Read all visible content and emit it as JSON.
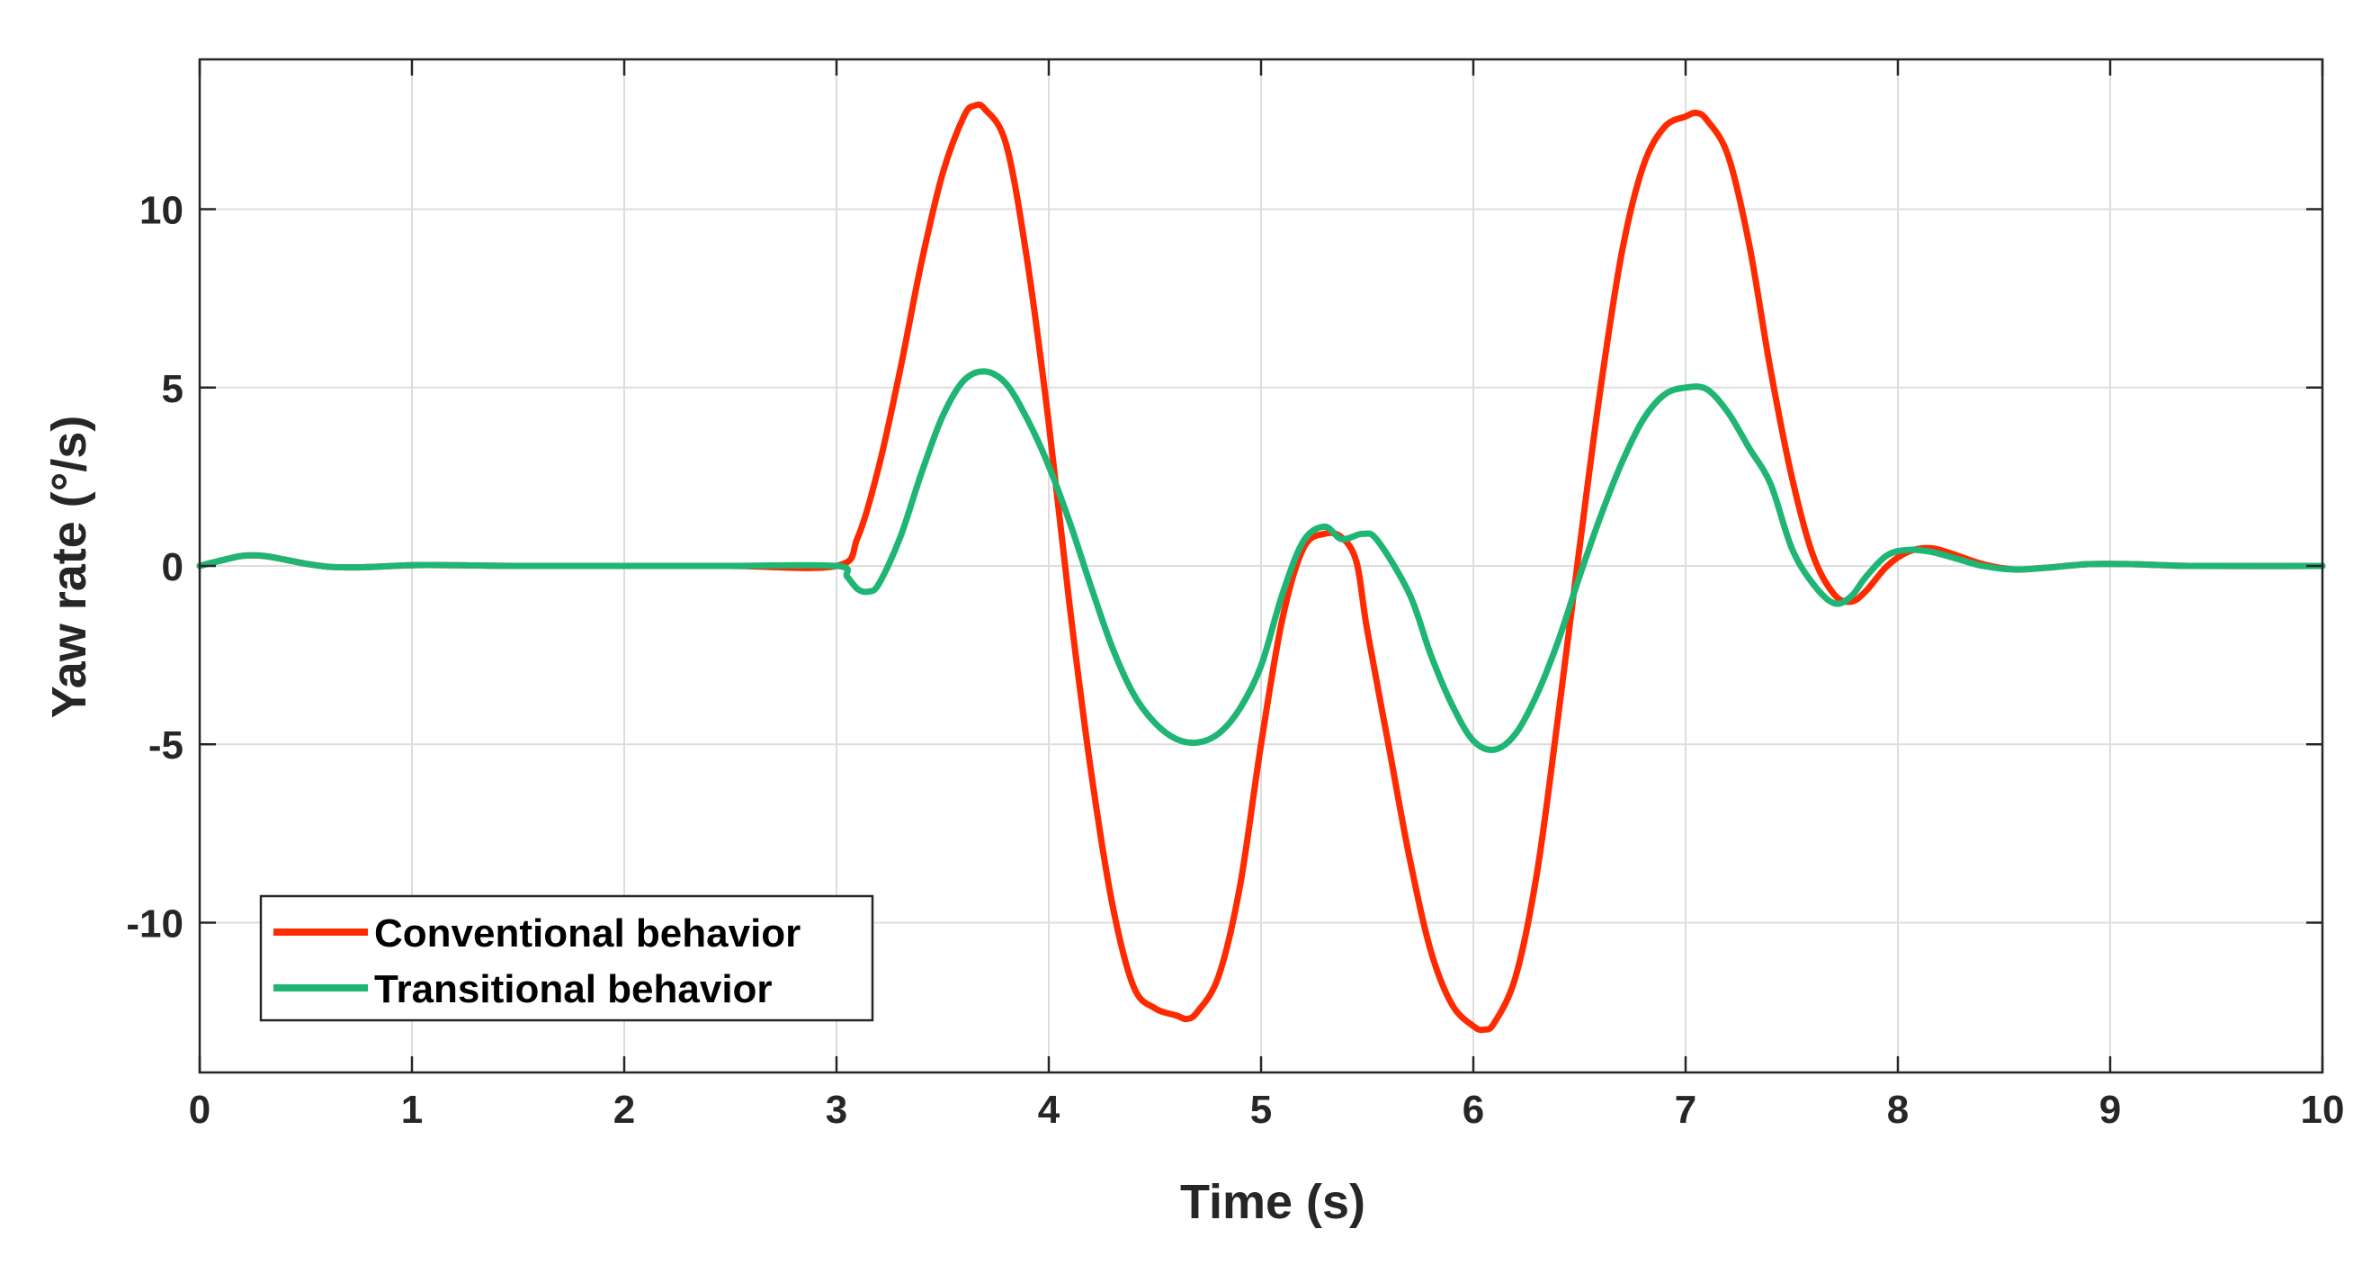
{
  "chart_data": {
    "type": "line",
    "title": "",
    "xlabel": "Time (s)",
    "ylabel": "Yaw rate (°/s)",
    "xlim": [
      0,
      10
    ],
    "ylim": [
      -14.2,
      14.2
    ],
    "xticks": [
      0,
      1,
      2,
      3,
      4,
      5,
      6,
      7,
      8,
      9,
      10
    ],
    "xtick_labels": [
      "0",
      "1",
      "2",
      "3",
      "4",
      "5",
      "6",
      "7",
      "8",
      "9",
      "10"
    ],
    "yticks": [
      10,
      5,
      0,
      -5,
      -10
    ],
    "ytick_labels": [
      "10",
      "5",
      "0",
      "-5",
      "-10"
    ],
    "grid": true,
    "legend_position": "bottom-left",
    "series": [
      {
        "name": "Conventional behavior",
        "color": "#ff2a00",
        "points": [
          [
            0,
            0
          ],
          [
            0.1,
            0.15
          ],
          [
            0.2,
            0.28
          ],
          [
            0.3,
            0.28
          ],
          [
            0.4,
            0.18
          ],
          [
            0.5,
            0.06
          ],
          [
            0.6,
            -0.02
          ],
          [
            0.7,
            -0.04
          ],
          [
            0.8,
            -0.03
          ],
          [
            1.0,
            0.02
          ],
          [
            1.2,
            0.02
          ],
          [
            1.5,
            0
          ],
          [
            2.0,
            0
          ],
          [
            2.5,
            0
          ],
          [
            3.0,
            0
          ],
          [
            3.1,
            0.8
          ],
          [
            3.2,
            2.8
          ],
          [
            3.3,
            5.5
          ],
          [
            3.4,
            8.5
          ],
          [
            3.5,
            11.0
          ],
          [
            3.6,
            12.6
          ],
          [
            3.65,
            12.9
          ],
          [
            3.7,
            12.8
          ],
          [
            3.8,
            11.8
          ],
          [
            3.9,
            8.5
          ],
          [
            4.0,
            4.0
          ],
          [
            4.1,
            -1.2
          ],
          [
            4.2,
            -5.8
          ],
          [
            4.3,
            -9.5
          ],
          [
            4.4,
            -11.8
          ],
          [
            4.5,
            -12.4
          ],
          [
            4.6,
            -12.6
          ],
          [
            4.65,
            -12.7
          ],
          [
            4.7,
            -12.5
          ],
          [
            4.8,
            -11.5
          ],
          [
            4.9,
            -9.0
          ],
          [
            5.0,
            -5.0
          ],
          [
            5.1,
            -1.5
          ],
          [
            5.2,
            0.5
          ],
          [
            5.3,
            0.9
          ],
          [
            5.38,
            0.8
          ],
          [
            5.45,
            0.1
          ],
          [
            5.5,
            -1.8
          ],
          [
            5.6,
            -5.0
          ],
          [
            5.7,
            -8.2
          ],
          [
            5.8,
            -10.8
          ],
          [
            5.9,
            -12.3
          ],
          [
            6.0,
            -12.9
          ],
          [
            6.05,
            -13.0
          ],
          [
            6.1,
            -12.8
          ],
          [
            6.2,
            -11.5
          ],
          [
            6.3,
            -8.6
          ],
          [
            6.4,
            -4.2
          ],
          [
            6.5,
            0.5
          ],
          [
            6.6,
            5.0
          ],
          [
            6.7,
            8.8
          ],
          [
            6.8,
            11.2
          ],
          [
            6.9,
            12.3
          ],
          [
            7.0,
            12.6
          ],
          [
            7.05,
            12.7
          ],
          [
            7.1,
            12.5
          ],
          [
            7.2,
            11.5
          ],
          [
            7.3,
            9.0
          ],
          [
            7.4,
            5.5
          ],
          [
            7.5,
            2.5
          ],
          [
            7.6,
            0.3
          ],
          [
            7.7,
            -0.8
          ],
          [
            7.78,
            -1.0
          ],
          [
            7.85,
            -0.7
          ],
          [
            7.95,
            0.0
          ],
          [
            8.05,
            0.4
          ],
          [
            8.15,
            0.5
          ],
          [
            8.25,
            0.35
          ],
          [
            8.4,
            0.05
          ],
          [
            8.55,
            -0.1
          ],
          [
            8.7,
            -0.05
          ],
          [
            8.9,
            0.05
          ],
          [
            9.1,
            0.05
          ],
          [
            9.4,
            0.0
          ],
          [
            10.0,
            0.0
          ]
        ]
      },
      {
        "name": "Transitional behavior",
        "color": "#1fb574",
        "points": [
          [
            0,
            0
          ],
          [
            0.1,
            0.15
          ],
          [
            0.2,
            0.28
          ],
          [
            0.3,
            0.28
          ],
          [
            0.4,
            0.18
          ],
          [
            0.5,
            0.06
          ],
          [
            0.6,
            -0.02
          ],
          [
            0.7,
            -0.04
          ],
          [
            0.8,
            -0.03
          ],
          [
            1.0,
            0.02
          ],
          [
            1.2,
            0.02
          ],
          [
            1.5,
            0
          ],
          [
            2.0,
            0
          ],
          [
            2.5,
            0
          ],
          [
            3.0,
            0
          ],
          [
            3.05,
            -0.3
          ],
          [
            3.1,
            -0.65
          ],
          [
            3.15,
            -0.72
          ],
          [
            3.2,
            -0.5
          ],
          [
            3.3,
            0.8
          ],
          [
            3.4,
            2.6
          ],
          [
            3.5,
            4.2
          ],
          [
            3.6,
            5.2
          ],
          [
            3.7,
            5.45
          ],
          [
            3.8,
            5.1
          ],
          [
            3.9,
            4.1
          ],
          [
            4.0,
            2.8
          ],
          [
            4.1,
            1.2
          ],
          [
            4.2,
            -0.6
          ],
          [
            4.3,
            -2.3
          ],
          [
            4.4,
            -3.6
          ],
          [
            4.5,
            -4.4
          ],
          [
            4.6,
            -4.85
          ],
          [
            4.7,
            -4.95
          ],
          [
            4.8,
            -4.7
          ],
          [
            4.9,
            -4.0
          ],
          [
            5.0,
            -2.8
          ],
          [
            5.1,
            -0.8
          ],
          [
            5.2,
            0.7
          ],
          [
            5.3,
            1.1
          ],
          [
            5.38,
            0.75
          ],
          [
            5.48,
            0.9
          ],
          [
            5.55,
            0.7
          ],
          [
            5.7,
            -0.8
          ],
          [
            5.8,
            -2.5
          ],
          [
            5.9,
            -3.9
          ],
          [
            6.0,
            -4.9
          ],
          [
            6.1,
            -5.15
          ],
          [
            6.2,
            -4.7
          ],
          [
            6.3,
            -3.6
          ],
          [
            6.4,
            -2.1
          ],
          [
            6.5,
            -0.3
          ],
          [
            6.6,
            1.4
          ],
          [
            6.7,
            2.9
          ],
          [
            6.8,
            4.1
          ],
          [
            6.9,
            4.8
          ],
          [
            7.0,
            5.0
          ],
          [
            7.1,
            4.95
          ],
          [
            7.2,
            4.3
          ],
          [
            7.3,
            3.3
          ],
          [
            7.4,
            2.3
          ],
          [
            7.5,
            0.5
          ],
          [
            7.6,
            -0.5
          ],
          [
            7.7,
            -1.05
          ],
          [
            7.78,
            -0.85
          ],
          [
            7.85,
            -0.3
          ],
          [
            7.95,
            0.3
          ],
          [
            8.05,
            0.45
          ],
          [
            8.15,
            0.4
          ],
          [
            8.25,
            0.25
          ],
          [
            8.4,
            0.0
          ],
          [
            8.55,
            -0.1
          ],
          [
            8.7,
            -0.05
          ],
          [
            8.9,
            0.05
          ],
          [
            9.1,
            0.05
          ],
          [
            9.4,
            0.0
          ],
          [
            10.0,
            0.0
          ]
        ]
      }
    ]
  }
}
